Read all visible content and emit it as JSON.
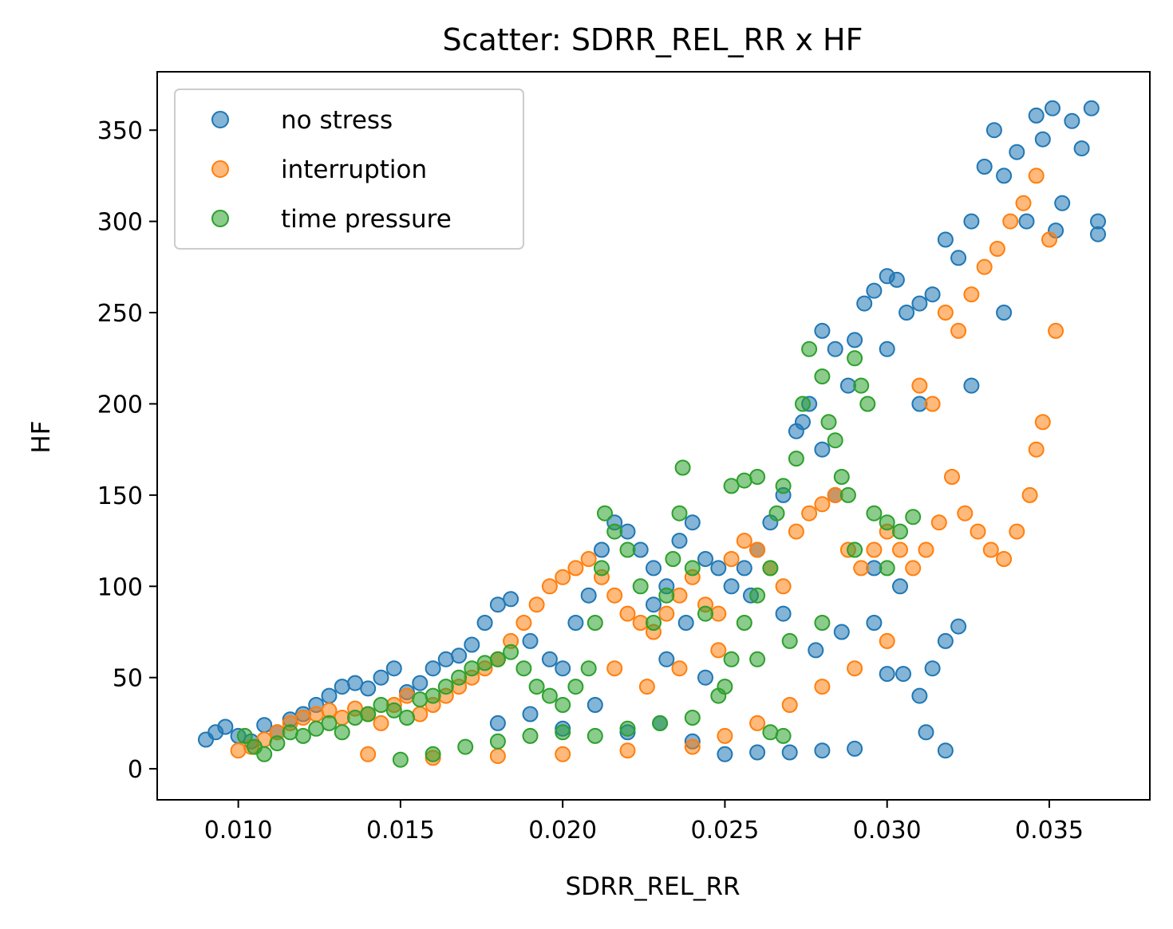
{
  "chart_data": {
    "type": "scatter",
    "title": "Scatter: SDRR_REL_RR x HF",
    "xlabel": "SDRR_REL_RR",
    "ylabel": "HF",
    "xlim": [
      0.0075,
      0.0381
    ],
    "ylim": [
      -17,
      382
    ],
    "xticks": [
      0.01,
      0.015,
      0.02,
      0.025,
      0.03,
      0.035
    ],
    "xtick_labels": [
      "0.010",
      "0.015",
      "0.020",
      "0.025",
      "0.030",
      "0.035"
    ],
    "yticks": [
      0,
      50,
      100,
      150,
      200,
      250,
      300,
      350
    ],
    "ytick_labels": [
      "0",
      "50",
      "100",
      "150",
      "200",
      "250",
      "300",
      "350"
    ],
    "grid": false,
    "legend_position": "top-left",
    "series": [
      {
        "name": "no stress",
        "color": "#1f77b4",
        "points": [
          [
            0.009,
            16
          ],
          [
            0.0093,
            20
          ],
          [
            0.0096,
            23
          ],
          [
            0.01,
            18
          ],
          [
            0.0104,
            15
          ],
          [
            0.0108,
            24
          ],
          [
            0.0112,
            20
          ],
          [
            0.0116,
            27
          ],
          [
            0.012,
            30
          ],
          [
            0.0124,
            35
          ],
          [
            0.0128,
            40
          ],
          [
            0.0132,
            45
          ],
          [
            0.0136,
            47
          ],
          [
            0.014,
            44
          ],
          [
            0.0144,
            50
          ],
          [
            0.0148,
            55
          ],
          [
            0.0152,
            42
          ],
          [
            0.0156,
            47
          ],
          [
            0.016,
            55
          ],
          [
            0.0164,
            60
          ],
          [
            0.0168,
            62
          ],
          [
            0.0172,
            68
          ],
          [
            0.0176,
            80
          ],
          [
            0.018,
            90
          ],
          [
            0.0184,
            93
          ],
          [
            0.019,
            70
          ],
          [
            0.0196,
            60
          ],
          [
            0.02,
            55
          ],
          [
            0.0204,
            80
          ],
          [
            0.0208,
            95
          ],
          [
            0.0212,
            120
          ],
          [
            0.0216,
            135
          ],
          [
            0.022,
            130
          ],
          [
            0.0224,
            120
          ],
          [
            0.0228,
            110
          ],
          [
            0.0232,
            100
          ],
          [
            0.0236,
            125
          ],
          [
            0.024,
            135
          ],
          [
            0.0244,
            115
          ],
          [
            0.0248,
            110
          ],
          [
            0.0252,
            100
          ],
          [
            0.0256,
            110
          ],
          [
            0.026,
            120
          ],
          [
            0.0264,
            135
          ],
          [
            0.0268,
            150
          ],
          [
            0.0272,
            185
          ],
          [
            0.0276,
            200
          ],
          [
            0.028,
            240
          ],
          [
            0.0284,
            230
          ],
          [
            0.0288,
            210
          ],
          [
            0.029,
            235
          ],
          [
            0.0293,
            255
          ],
          [
            0.0296,
            262
          ],
          [
            0.03,
            270
          ],
          [
            0.0303,
            268
          ],
          [
            0.0306,
            250
          ],
          [
            0.031,
            255
          ],
          [
            0.0314,
            260
          ],
          [
            0.0318,
            290
          ],
          [
            0.0322,
            280
          ],
          [
            0.0326,
            300
          ],
          [
            0.033,
            330
          ],
          [
            0.0333,
            350
          ],
          [
            0.0336,
            325
          ],
          [
            0.034,
            338
          ],
          [
            0.0343,
            300
          ],
          [
            0.0346,
            358
          ],
          [
            0.0348,
            345
          ],
          [
            0.0351,
            362
          ],
          [
            0.0354,
            310
          ],
          [
            0.0357,
            355
          ],
          [
            0.036,
            340
          ],
          [
            0.0363,
            362
          ],
          [
            0.0365,
            300
          ],
          [
            0.018,
            25
          ],
          [
            0.019,
            30
          ],
          [
            0.02,
            22
          ],
          [
            0.021,
            35
          ],
          [
            0.022,
            20
          ],
          [
            0.023,
            25
          ],
          [
            0.024,
            15
          ],
          [
            0.025,
            8
          ],
          [
            0.026,
            9
          ],
          [
            0.027,
            9
          ],
          [
            0.028,
            10
          ],
          [
            0.029,
            11
          ],
          [
            0.03,
            52
          ],
          [
            0.0305,
            52
          ],
          [
            0.031,
            40
          ],
          [
            0.0314,
            55
          ],
          [
            0.0318,
            70
          ],
          [
            0.0322,
            78
          ],
          [
            0.0312,
            20
          ],
          [
            0.0318,
            10
          ],
          [
            0.0228,
            90
          ],
          [
            0.0238,
            80
          ],
          [
            0.0232,
            60
          ],
          [
            0.0244,
            50
          ],
          [
            0.0258,
            95
          ],
          [
            0.0268,
            85
          ],
          [
            0.0278,
            65
          ],
          [
            0.0286,
            75
          ],
          [
            0.0296,
            80
          ],
          [
            0.0304,
            100
          ],
          [
            0.0296,
            110
          ],
          [
            0.0284,
            150
          ],
          [
            0.0274,
            190
          ],
          [
            0.028,
            175
          ],
          [
            0.03,
            230
          ],
          [
            0.031,
            200
          ],
          [
            0.0326,
            210
          ],
          [
            0.0336,
            250
          ],
          [
            0.0352,
            295
          ],
          [
            0.0365,
            293
          ]
        ]
      },
      {
        "name": "interruption",
        "color": "#ff7f0e",
        "points": [
          [
            0.01,
            10
          ],
          [
            0.0104,
            12
          ],
          [
            0.0108,
            16
          ],
          [
            0.0112,
            20
          ],
          [
            0.0116,
            25
          ],
          [
            0.012,
            28
          ],
          [
            0.0124,
            30
          ],
          [
            0.0128,
            32
          ],
          [
            0.0132,
            28
          ],
          [
            0.0136,
            33
          ],
          [
            0.014,
            30
          ],
          [
            0.0144,
            25
          ],
          [
            0.0148,
            35
          ],
          [
            0.0152,
            40
          ],
          [
            0.0156,
            30
          ],
          [
            0.016,
            35
          ],
          [
            0.0164,
            40
          ],
          [
            0.0168,
            45
          ],
          [
            0.0172,
            50
          ],
          [
            0.0176,
            55
          ],
          [
            0.018,
            60
          ],
          [
            0.0184,
            70
          ],
          [
            0.0188,
            80
          ],
          [
            0.0192,
            90
          ],
          [
            0.0196,
            100
          ],
          [
            0.02,
            105
          ],
          [
            0.0204,
            110
          ],
          [
            0.0208,
            115
          ],
          [
            0.0212,
            105
          ],
          [
            0.0216,
            95
          ],
          [
            0.022,
            85
          ],
          [
            0.0224,
            80
          ],
          [
            0.0228,
            75
          ],
          [
            0.0232,
            85
          ],
          [
            0.0236,
            95
          ],
          [
            0.024,
            105
          ],
          [
            0.0244,
            90
          ],
          [
            0.0248,
            85
          ],
          [
            0.0252,
            115
          ],
          [
            0.0256,
            125
          ],
          [
            0.026,
            120
          ],
          [
            0.0264,
            110
          ],
          [
            0.0268,
            100
          ],
          [
            0.0272,
            130
          ],
          [
            0.0276,
            140
          ],
          [
            0.028,
            145
          ],
          [
            0.0284,
            150
          ],
          [
            0.0288,
            120
          ],
          [
            0.0292,
            110
          ],
          [
            0.0296,
            120
          ],
          [
            0.03,
            130
          ],
          [
            0.0304,
            120
          ],
          [
            0.0308,
            110
          ],
          [
            0.0312,
            120
          ],
          [
            0.0316,
            135
          ],
          [
            0.032,
            160
          ],
          [
            0.0324,
            140
          ],
          [
            0.0328,
            130
          ],
          [
            0.0332,
            120
          ],
          [
            0.0336,
            115
          ],
          [
            0.034,
            130
          ],
          [
            0.0344,
            150
          ],
          [
            0.0346,
            175
          ],
          [
            0.0348,
            190
          ],
          [
            0.0318,
            250
          ],
          [
            0.0322,
            240
          ],
          [
            0.0326,
            260
          ],
          [
            0.033,
            275
          ],
          [
            0.0334,
            285
          ],
          [
            0.0338,
            300
          ],
          [
            0.0342,
            310
          ],
          [
            0.0346,
            325
          ],
          [
            0.035,
            290
          ],
          [
            0.0352,
            240
          ],
          [
            0.031,
            210
          ],
          [
            0.0314,
            200
          ],
          [
            0.014,
            8
          ],
          [
            0.016,
            6
          ],
          [
            0.018,
            7
          ],
          [
            0.02,
            8
          ],
          [
            0.022,
            10
          ],
          [
            0.024,
            12
          ],
          [
            0.025,
            18
          ],
          [
            0.026,
            25
          ],
          [
            0.027,
            35
          ],
          [
            0.028,
            45
          ],
          [
            0.029,
            55
          ],
          [
            0.03,
            70
          ],
          [
            0.0216,
            55
          ],
          [
            0.0226,
            45
          ],
          [
            0.0236,
            55
          ],
          [
            0.0248,
            65
          ]
        ]
      },
      {
        "name": "time pressure",
        "color": "#2ca02c",
        "points": [
          [
            0.0102,
            18
          ],
          [
            0.0105,
            12
          ],
          [
            0.0108,
            8
          ],
          [
            0.0112,
            14
          ],
          [
            0.0116,
            20
          ],
          [
            0.012,
            18
          ],
          [
            0.0124,
            22
          ],
          [
            0.0128,
            25
          ],
          [
            0.0132,
            20
          ],
          [
            0.0136,
            28
          ],
          [
            0.014,
            30
          ],
          [
            0.0144,
            35
          ],
          [
            0.0148,
            32
          ],
          [
            0.0152,
            28
          ],
          [
            0.0156,
            38
          ],
          [
            0.016,
            40
          ],
          [
            0.0164,
            45
          ],
          [
            0.0168,
            50
          ],
          [
            0.0172,
            55
          ],
          [
            0.0176,
            58
          ],
          [
            0.018,
            60
          ],
          [
            0.0184,
            64
          ],
          [
            0.0188,
            55
          ],
          [
            0.0192,
            45
          ],
          [
            0.0196,
            40
          ],
          [
            0.02,
            35
          ],
          [
            0.0204,
            45
          ],
          [
            0.0208,
            55
          ],
          [
            0.021,
            80
          ],
          [
            0.0212,
            110
          ],
          [
            0.0213,
            140
          ],
          [
            0.0216,
            130
          ],
          [
            0.022,
            120
          ],
          [
            0.0224,
            100
          ],
          [
            0.0228,
            80
          ],
          [
            0.0232,
            95
          ],
          [
            0.0234,
            115
          ],
          [
            0.0236,
            140
          ],
          [
            0.0237,
            165
          ],
          [
            0.024,
            110
          ],
          [
            0.0244,
            85
          ],
          [
            0.0248,
            40
          ],
          [
            0.0252,
            60
          ],
          [
            0.0256,
            80
          ],
          [
            0.026,
            95
          ],
          [
            0.0264,
            110
          ],
          [
            0.0266,
            140
          ],
          [
            0.0268,
            155
          ],
          [
            0.0272,
            170
          ],
          [
            0.0274,
            200
          ],
          [
            0.0276,
            230
          ],
          [
            0.028,
            215
          ],
          [
            0.0282,
            190
          ],
          [
            0.0284,
            180
          ],
          [
            0.0286,
            160
          ],
          [
            0.0288,
            150
          ],
          [
            0.029,
            225
          ],
          [
            0.0292,
            210
          ],
          [
            0.0294,
            200
          ],
          [
            0.0296,
            140
          ],
          [
            0.03,
            135
          ],
          [
            0.0304,
            130
          ],
          [
            0.0308,
            138
          ],
          [
            0.0256,
            158
          ],
          [
            0.026,
            160
          ],
          [
            0.0252,
            155
          ],
          [
            0.0264,
            20
          ],
          [
            0.0268,
            18
          ],
          [
            0.015,
            5
          ],
          [
            0.016,
            8
          ],
          [
            0.017,
            12
          ],
          [
            0.018,
            15
          ],
          [
            0.019,
            18
          ],
          [
            0.02,
            20
          ],
          [
            0.021,
            18
          ],
          [
            0.022,
            22
          ],
          [
            0.023,
            25
          ],
          [
            0.024,
            28
          ],
          [
            0.025,
            45
          ],
          [
            0.026,
            60
          ],
          [
            0.027,
            70
          ],
          [
            0.028,
            80
          ],
          [
            0.029,
            120
          ],
          [
            0.03,
            110
          ]
        ]
      }
    ]
  }
}
